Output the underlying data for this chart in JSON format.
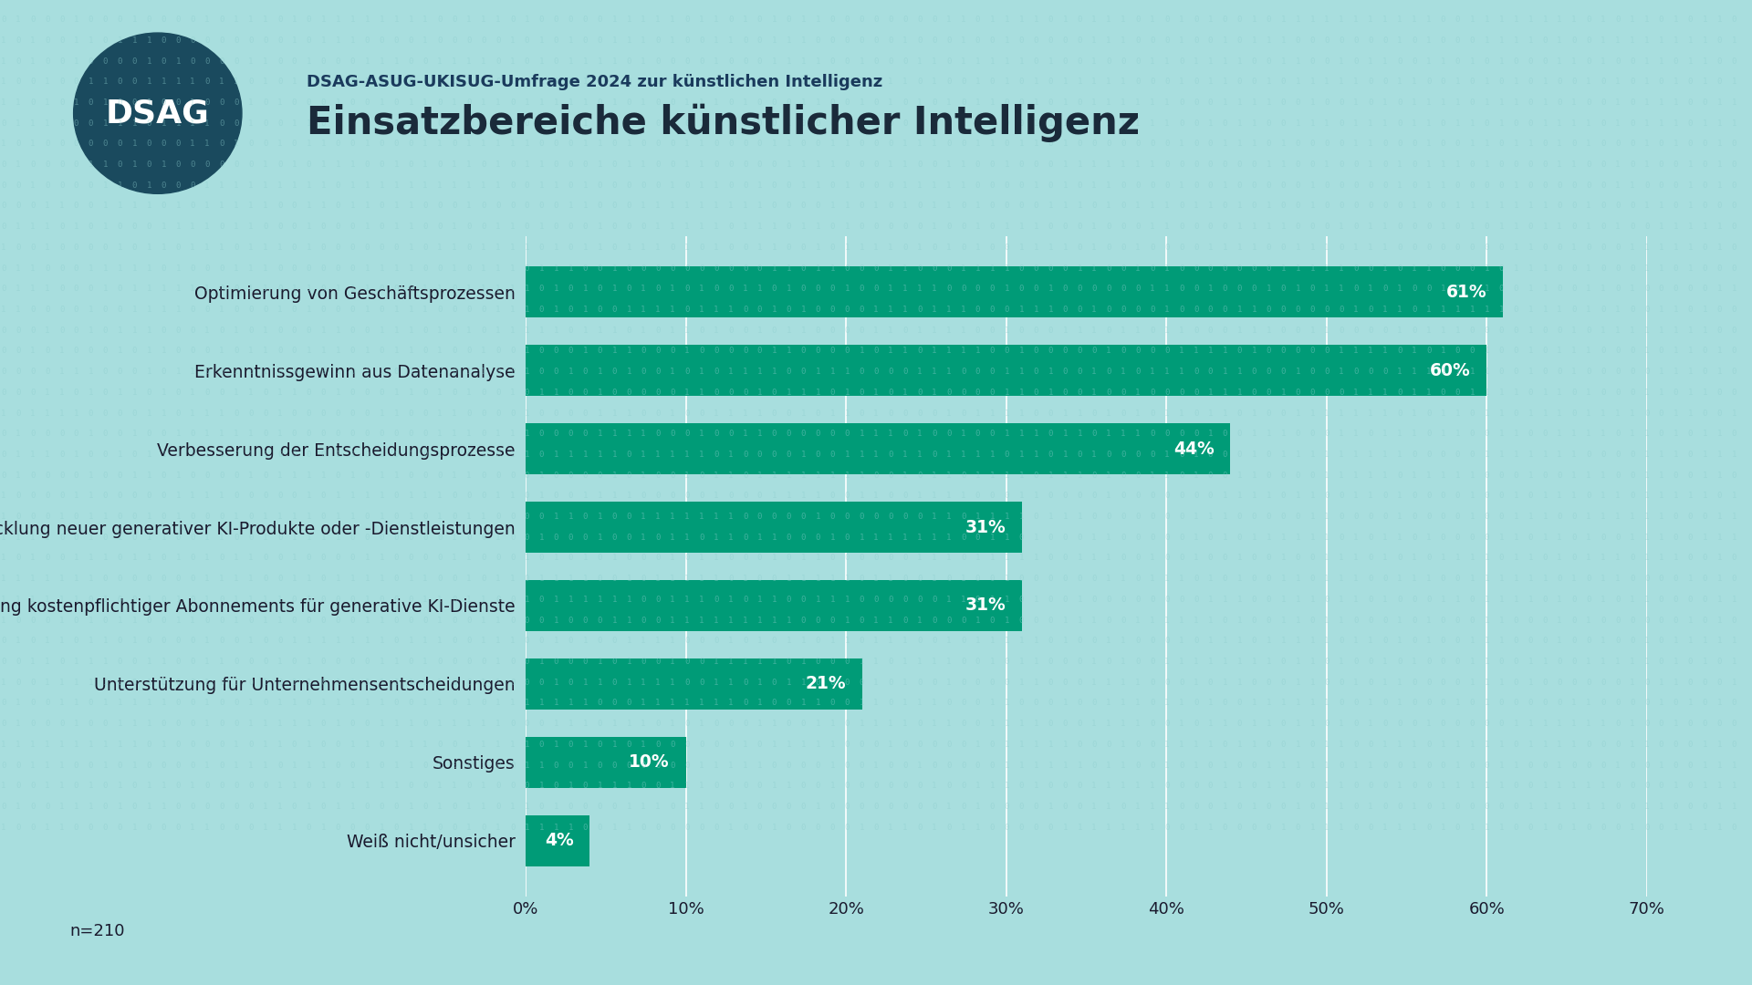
{
  "title_small": "DSAG-ASUG-UKISUG-Umfrage 2024 zur künstlichen Intelligenz",
  "title_large": "Einsatzbereiche künstlicher Intelligenz",
  "categories": [
    "Optimierung von Geschäftsprozessen",
    "Erkenntnissgewinn aus Datenanalyse",
    "Verbesserung der Entscheidungsprozesse",
    "Entwicklung neuer generativer KI-Produkte oder -Dienstleistungen",
    "Nutzung kostenpflichtiger Abonnements für generative KI-Dienste",
    "Unterstützung für Unternehmensentscheidungen",
    "Sonstiges",
    "Weiß nicht/unsicher"
  ],
  "values": [
    61,
    60,
    44,
    31,
    31,
    21,
    10,
    4
  ],
  "bar_color": "#009B77",
  "background_color": "#a8dede",
  "text_color_dark": "#1a1a2e",
  "bar_label_color": "#ffffff",
  "n_label": "n=210",
  "xlim": [
    0,
    70
  ],
  "xticks": [
    0,
    10,
    20,
    30,
    40,
    50,
    60,
    70
  ],
  "logo_bg_color": "#1a4a5e",
  "logo_text_color": "#ffffff",
  "title_small_color": "#1a3a5c",
  "title_large_color": "#1a2a3a",
  "grid_color": "#c8e8e8",
  "binary_color": "#8ecece"
}
